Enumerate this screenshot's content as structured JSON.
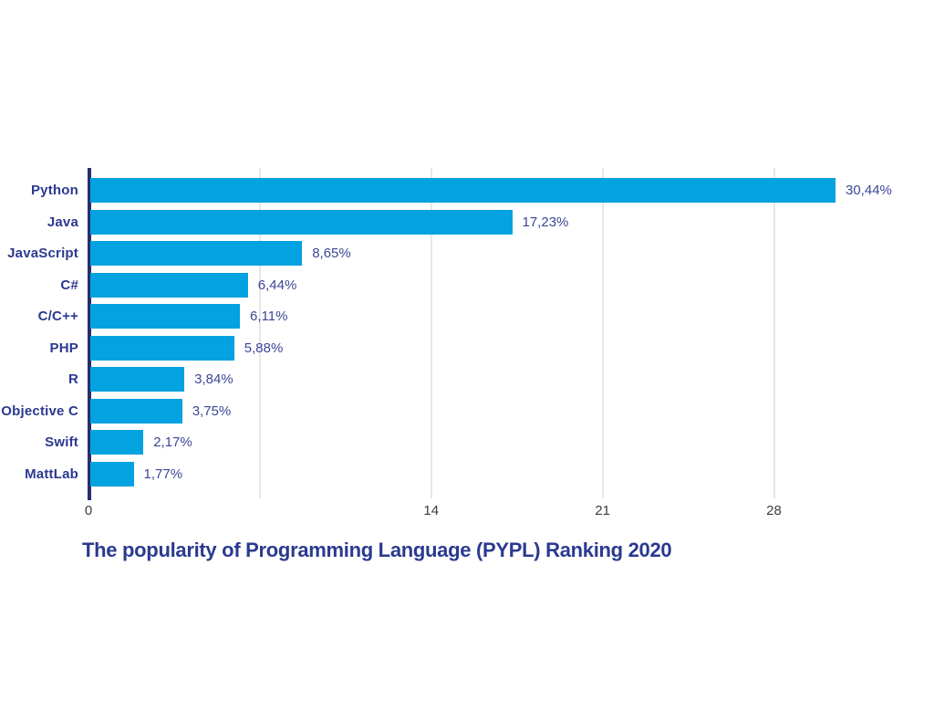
{
  "chart_data": {
    "type": "bar",
    "orientation": "horizontal",
    "title": "The popularity of Programming Language (PYPL) Ranking 2020",
    "xlabel": "",
    "ylabel": "",
    "categories": [
      "Python",
      "Java",
      "JavaScript",
      "C#",
      "C/C++",
      "PHP",
      "R",
      "Objective C",
      "Swift",
      "MattLab"
    ],
    "values": [
      30.44,
      17.23,
      8.65,
      6.44,
      6.11,
      5.88,
      3.84,
      3.75,
      2.17,
      1.77
    ],
    "value_labels": [
      "30,44%",
      "17,23%",
      "8,65%",
      "6,44%",
      "6,11%",
      "5,88%",
      "3,84%",
      "3,75%",
      "2,17%",
      "1,77%"
    ],
    "xlim": [
      0,
      33
    ],
    "x_tick_labels": [
      "0",
      "14",
      "21",
      "28"
    ],
    "x_tick_values": [
      0,
      14,
      21,
      28
    ],
    "gridlines_at": [
      7,
      14,
      21,
      28
    ],
    "grid": true,
    "legend": false
  },
  "colors": {
    "bar": "#03a2e0",
    "category_label": "#2b3990",
    "value_label": "#3d4795",
    "title": "#2b3a8f",
    "axis_line": "#272f6d",
    "gridline": "#e7e7e7",
    "tick_label": "#3d3d3d",
    "background": "#ffffff"
  }
}
